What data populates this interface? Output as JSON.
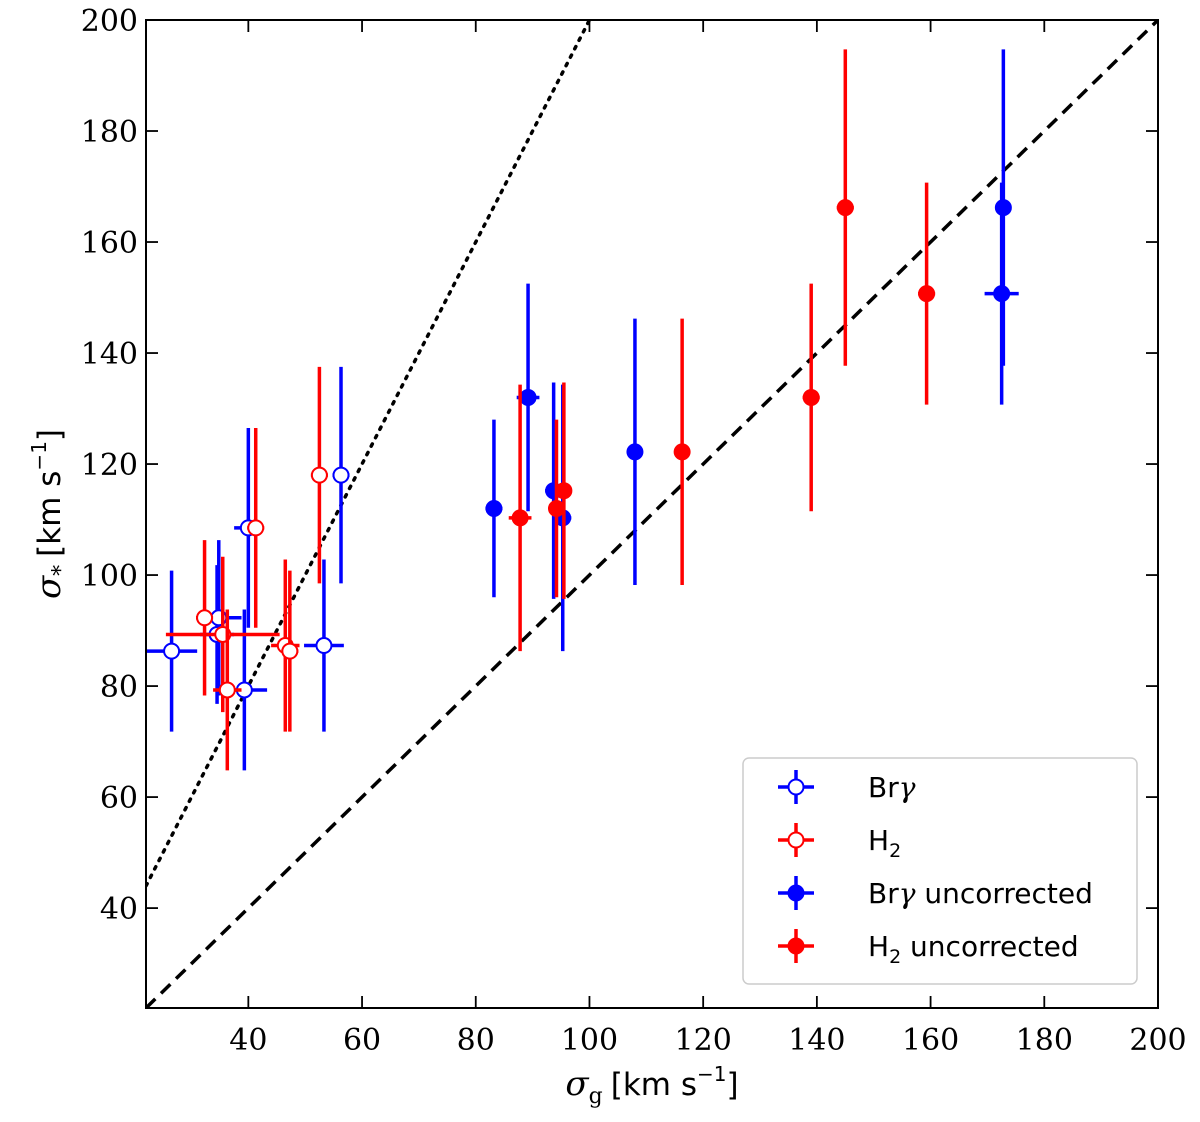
{
  "chart_data": {
    "type": "scatter",
    "title": "",
    "xlabel": "σ_g [km s⁻¹]",
    "ylabel": "σ_* [km s⁻¹]",
    "xlabel_parts": {
      "symbol": "σ",
      "sub": "g",
      "unit": "[km s",
      "exp": "−1",
      "close": "]"
    },
    "ylabel_parts": {
      "symbol": "σ",
      "sub": "*",
      "unit": "[km s",
      "exp": "−1",
      "close": "]"
    },
    "xlim": [
      22,
      200
    ],
    "ylim": [
      22,
      200
    ],
    "xticks": [
      40,
      60,
      80,
      100,
      120,
      140,
      160,
      180,
      200
    ],
    "yticks": [
      40,
      60,
      80,
      100,
      120,
      140,
      160,
      180,
      200
    ],
    "legend_position": "lower-right",
    "reference_lines": [
      {
        "name": "one-to-one",
        "style": "dashed",
        "slope": 1,
        "intercept": 0
      },
      {
        "name": "steep",
        "style": "dotted",
        "slope": 2,
        "intercept": 0
      }
    ],
    "series": [
      {
        "name": "Brγ",
        "legend_main": "Br",
        "legend_greek": "γ",
        "legend_sub": "",
        "legend_suffix": "",
        "color": "#0000ff",
        "filled": false,
        "points": [
          {
            "x": 26.5,
            "y": 86.3,
            "xerr": 4.5,
            "yerr": 14.5
          },
          {
            "x": 34.5,
            "y": 89.3,
            "xerr": 3.0,
            "yerr": 12.5
          },
          {
            "x": 34.8,
            "y": 92.3,
            "xerr": 4.0,
            "yerr": 14.0
          },
          {
            "x": 39.3,
            "y": 79.3,
            "xerr": 4.0,
            "yerr": 14.5
          },
          {
            "x": 40.0,
            "y": 108.5,
            "xerr": 2.5,
            "yerr": 18.0
          },
          {
            "x": 53.3,
            "y": 87.3,
            "xerr": 3.5,
            "yerr": 15.5
          },
          {
            "x": 56.3,
            "y": 118.0,
            "xerr": 1.5,
            "yerr": 19.5
          }
        ]
      },
      {
        "name": "H₂",
        "legend_main": "H",
        "legend_greek": "",
        "legend_sub": "2",
        "legend_suffix": "",
        "color": "#ff0000",
        "filled": false,
        "points": [
          {
            "x": 32.3,
            "y": 92.3,
            "xerr": 1.5,
            "yerr": 14.0
          },
          {
            "x": 35.5,
            "y": 89.3,
            "xerr": 10.0,
            "yerr": 14.0
          },
          {
            "x": 36.3,
            "y": 79.3,
            "xerr": 2.5,
            "yerr": 14.5
          },
          {
            "x": 41.3,
            "y": 108.5,
            "xerr": 1.5,
            "yerr": 18.0
          },
          {
            "x": 46.5,
            "y": 87.3,
            "xerr": 2.5,
            "yerr": 15.5
          },
          {
            "x": 47.3,
            "y": 86.3,
            "xerr": 1.5,
            "yerr": 14.5
          },
          {
            "x": 52.5,
            "y": 118.0,
            "xerr": 1.5,
            "yerr": 19.5
          }
        ]
      },
      {
        "name": "Brγ uncorrected",
        "legend_main": "Br",
        "legend_greek": "γ",
        "legend_sub": "",
        "legend_suffix": " uncorrected",
        "color": "#0000ff",
        "filled": true,
        "points": [
          {
            "x": 83.2,
            "y": 112.0,
            "xerr": 1.5,
            "yerr": 16.0
          },
          {
            "x": 89.2,
            "y": 132.0,
            "xerr": 2.0,
            "yerr": 20.5
          },
          {
            "x": 93.7,
            "y": 115.2,
            "xerr": 1.5,
            "yerr": 19.5
          },
          {
            "x": 95.3,
            "y": 110.3,
            "xerr": 1.5,
            "yerr": 24.0
          },
          {
            "x": 108.0,
            "y": 122.2,
            "xerr": 0.5,
            "yerr": 24.0
          },
          {
            "x": 172.5,
            "y": 150.7,
            "xerr": 3.0,
            "yerr": 20.0
          },
          {
            "x": 172.8,
            "y": 166.2,
            "xerr": 0.5,
            "yerr": 28.5
          }
        ]
      },
      {
        "name": "H₂ uncorrected",
        "legend_main": "H",
        "legend_greek": "",
        "legend_sub": "2",
        "legend_suffix": " uncorrected",
        "color": "#ff0000",
        "filled": true,
        "points": [
          {
            "x": 87.8,
            "y": 110.3,
            "xerr": 2.0,
            "yerr": 24.0
          },
          {
            "x": 94.2,
            "y": 112.0,
            "xerr": 1.0,
            "yerr": 16.0
          },
          {
            "x": 95.5,
            "y": 115.2,
            "xerr": 1.0,
            "yerr": 19.5
          },
          {
            "x": 116.3,
            "y": 122.2,
            "xerr": 0.5,
            "yerr": 24.0
          },
          {
            "x": 139.0,
            "y": 132.0,
            "xerr": 1.5,
            "yerr": 20.5
          },
          {
            "x": 145.0,
            "y": 166.2,
            "xerr": 1.5,
            "yerr": 28.5
          },
          {
            "x": 159.3,
            "y": 150.7,
            "xerr": 1.5,
            "yerr": 20.0
          }
        ]
      }
    ]
  }
}
